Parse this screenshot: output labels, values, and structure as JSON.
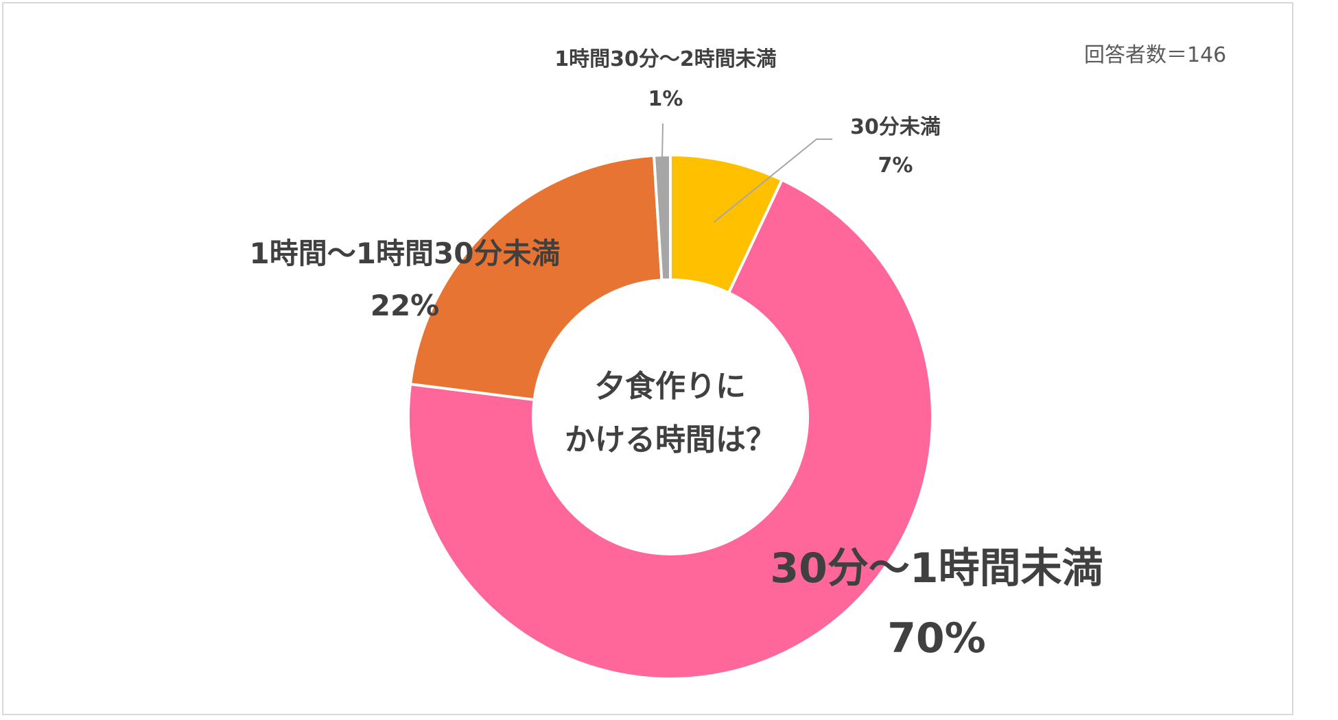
{
  "respondents_label": "回答者数＝146",
  "center_label": {
    "line1": "夕食作りに",
    "line2": "かける時間は？"
  },
  "chart_data": {
    "type": "pie",
    "style": "donut",
    "legend": "none",
    "slices": [
      {
        "label": "30分未満",
        "value": 7,
        "value_label": "7%",
        "color": "#FFC000"
      },
      {
        "label": "30分～1時間未満",
        "value": 70,
        "value_label": "70%",
        "color": "#FF6699"
      },
      {
        "label": "1時間～1時間30分未満",
        "value": 22,
        "value_label": "22%",
        "color": "#E87434"
      },
      {
        "label": "1時間30分～2時間未満",
        "value": 1,
        "value_label": "1%",
        "color": "#A6A6A6"
      }
    ]
  }
}
